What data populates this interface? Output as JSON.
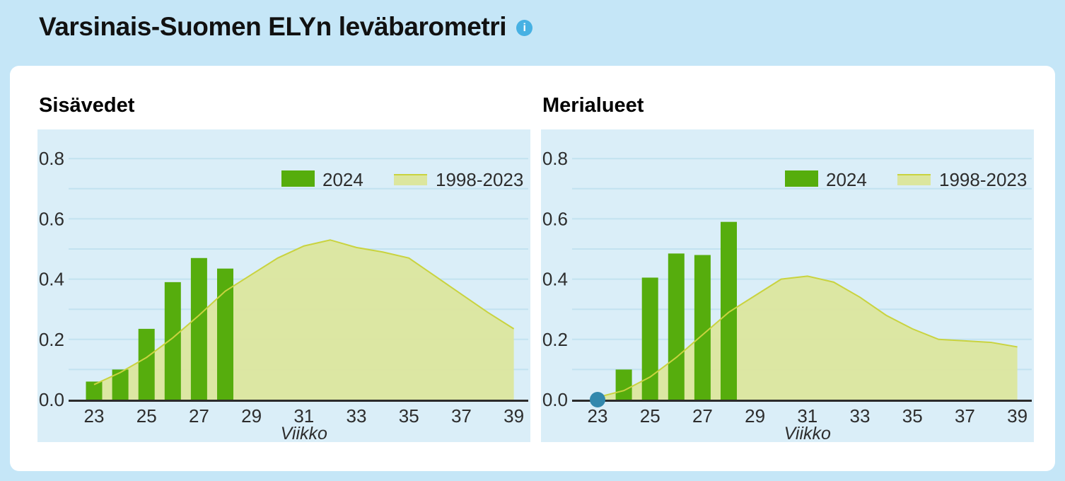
{
  "header": {
    "title": "Varsinais-Suomen ELYn leväbarometri",
    "info_glyph": "i"
  },
  "colors": {
    "page_bg": "#c5e6f7",
    "card_bg": "#ffffff",
    "plot_bg": "#daeef8",
    "gridline": "#c2e2f0",
    "axis": "#2b2b2b",
    "tick_text": "#2d2d2d",
    "bar_2024": "#56ad0d",
    "area_fill": "#dce69e",
    "area_line": "#c9d33f",
    "point_dot": "#3288ad",
    "info_icon_bg": "#47b1e3"
  },
  "chart_data": [
    {
      "type": "bar+area",
      "title": "Sisävedet",
      "xlabel": "Viikko",
      "x": [
        23,
        24,
        25,
        26,
        27,
        28,
        29,
        30,
        31,
        32,
        33,
        34,
        35,
        36,
        37,
        38,
        39
      ],
      "xticks": [
        23,
        25,
        27,
        29,
        31,
        33,
        35,
        37,
        39
      ],
      "yticks": [
        0.0,
        0.2,
        0.4,
        0.6,
        0.8
      ],
      "ylim": [
        0,
        0.9
      ],
      "gridline_step": 0.1,
      "grid": true,
      "legend_position": "top-right",
      "series": [
        {
          "name": "1998-2023",
          "type": "area",
          "x": [
            23,
            24,
            25,
            26,
            27,
            28,
            29,
            30,
            31,
            32,
            33,
            34,
            35,
            36,
            37,
            38,
            39
          ],
          "values": [
            0.05,
            0.09,
            0.14,
            0.205,
            0.28,
            0.36,
            0.415,
            0.47,
            0.51,
            0.53,
            0.505,
            0.49,
            0.47,
            0.41,
            0.35,
            0.29,
            0.235
          ]
        },
        {
          "name": "2024",
          "type": "bar",
          "x": [
            23,
            24,
            25,
            26,
            27,
            28
          ],
          "values": [
            0.06,
            0.1,
            0.235,
            0.39,
            0.47,
            0.435
          ]
        }
      ]
    },
    {
      "type": "bar+area",
      "title": "Merialueet",
      "xlabel": "Viikko",
      "x": [
        23,
        24,
        25,
        26,
        27,
        28,
        29,
        30,
        31,
        32,
        33,
        34,
        35,
        36,
        37,
        38,
        39
      ],
      "xticks": [
        23,
        25,
        27,
        29,
        31,
        33,
        35,
        37,
        39
      ],
      "yticks": [
        0.0,
        0.2,
        0.4,
        0.6,
        0.8
      ],
      "ylim": [
        0,
        0.9
      ],
      "gridline_step": 0.1,
      "grid": true,
      "legend_position": "top-right",
      "series": [
        {
          "name": "1998-2023",
          "type": "area",
          "x": [
            23,
            24,
            25,
            26,
            27,
            28,
            29,
            30,
            31,
            32,
            33,
            34,
            35,
            36,
            37,
            38,
            39
          ],
          "values": [
            0.008,
            0.03,
            0.075,
            0.14,
            0.215,
            0.29,
            0.345,
            0.4,
            0.41,
            0.39,
            0.34,
            0.28,
            0.235,
            0.2,
            0.195,
            0.19,
            0.175
          ]
        },
        {
          "name": "2024",
          "type": "bar",
          "x": [
            24,
            25,
            26,
            27,
            28
          ],
          "values": [
            0.1,
            0.405,
            0.485,
            0.48,
            0.59
          ]
        },
        {
          "name": "2024",
          "type": "point",
          "x": [
            23
          ],
          "values": [
            0.0
          ]
        }
      ]
    }
  ]
}
